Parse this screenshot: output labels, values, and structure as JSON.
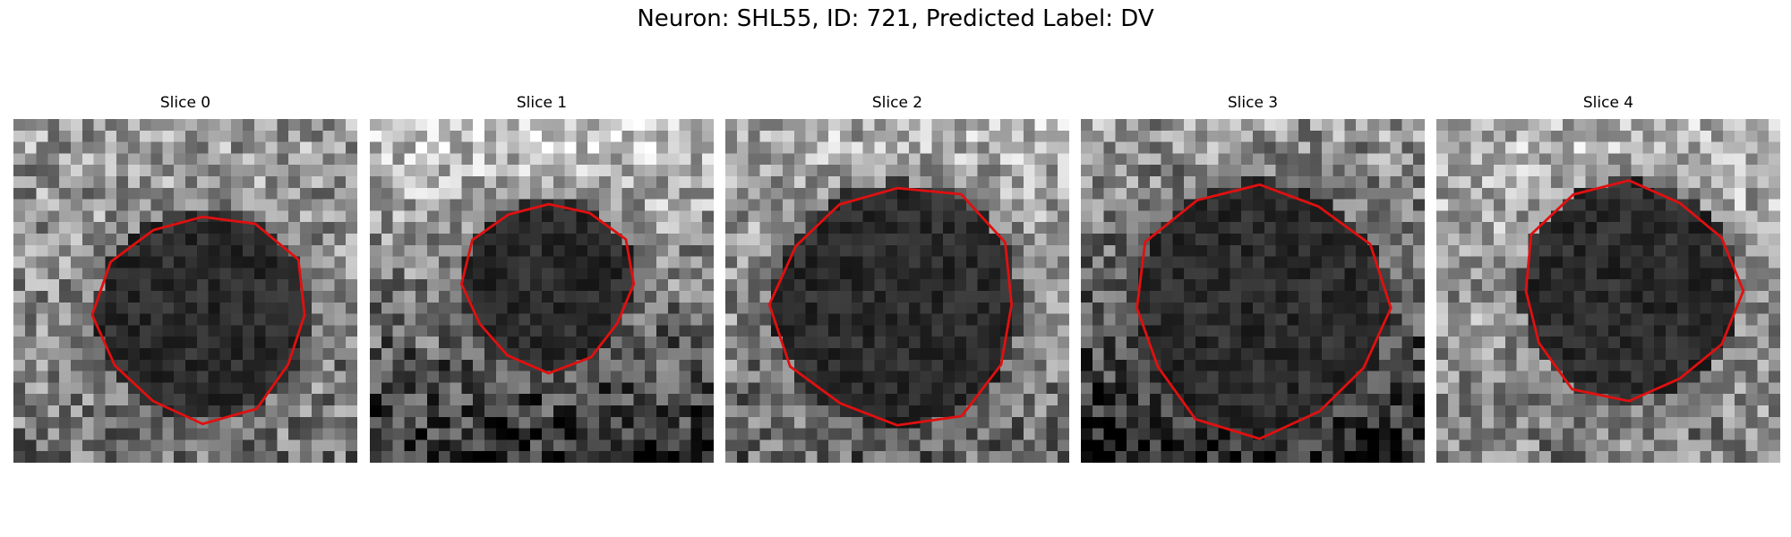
{
  "title": "Neuron: SHL55, ID: 721, Predicted Label: DV",
  "panels": [
    {
      "label": "Slice 0",
      "seed": 11,
      "dark_center": [
        0.55,
        0.57
      ],
      "dark_radius": 0.31,
      "top_bright": 0.62,
      "bottom_bright": 0.45
    },
    {
      "label": "Slice 1",
      "seed": 23,
      "dark_center": [
        0.52,
        0.48
      ],
      "dark_radius": 0.25,
      "top_bright": 0.8,
      "bottom_bright": 0.18
    },
    {
      "label": "Slice 2",
      "seed": 37,
      "dark_center": [
        0.5,
        0.54
      ],
      "dark_radius": 0.36,
      "top_bright": 0.7,
      "bottom_bright": 0.4
    },
    {
      "label": "Slice 3",
      "seed": 41,
      "dark_center": [
        0.52,
        0.55
      ],
      "dark_radius": 0.37,
      "top_bright": 0.6,
      "bottom_bright": 0.12
    },
    {
      "label": "Slice 4",
      "seed": 53,
      "dark_center": [
        0.56,
        0.5
      ],
      "dark_radius": 0.32,
      "top_bright": 0.72,
      "bottom_bright": 0.5
    }
  ],
  "contour_color": "#e01010",
  "colormap": "grayscale"
}
